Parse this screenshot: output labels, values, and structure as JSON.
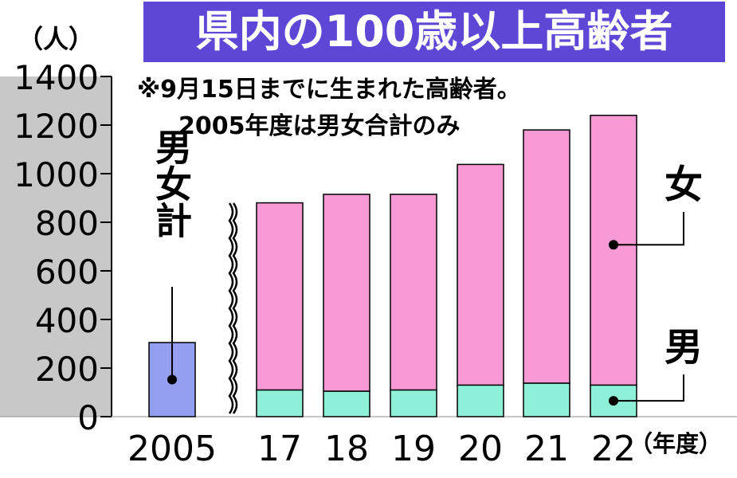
{
  "chart_data": {
    "type": "bar",
    "stacked": true,
    "title": "県内の100歳以上高齢者",
    "note_lines": [
      "※9月15日までに生まれた高齢者。",
      "2005年度は男女合計のみ"
    ],
    "ylabel": "（人）",
    "xlabel": "（年度）",
    "ylim": [
      0,
      1400
    ],
    "yticks": [
      0,
      200,
      400,
      600,
      800,
      1000,
      1200,
      1400
    ],
    "grid": false,
    "categories": [
      "2005",
      "17",
      "18",
      "19",
      "20",
      "21",
      "22"
    ],
    "total_series": {
      "name": "男女計",
      "values": [
        305,
        null,
        null,
        null,
        null,
        null,
        null
      ]
    },
    "series": [
      {
        "name": "男",
        "values": [
          null,
          110,
          105,
          110,
          130,
          138,
          130
        ]
      },
      {
        "name": "女",
        "values": [
          null,
          770,
          810,
          805,
          908,
          1042,
          1110
        ]
      }
    ],
    "legend_placement": "right",
    "axis_break_after_category": "2005",
    "colors": {
      "title_bg": "#5e46d6",
      "title_text": "#ffffff",
      "band": "#c8c8c8",
      "total": "#959ff2",
      "male": "#8ff0d8",
      "female": "#f79ad6",
      "outline": "#000000"
    }
  }
}
